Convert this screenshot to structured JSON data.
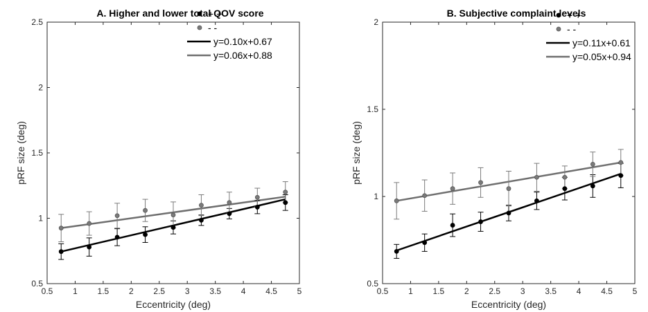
{
  "chart_data": [
    {
      "type": "scatter",
      "title": "A. Higher and lower total QOV score",
      "xlabel": "Eccentricity (deg)",
      "ylabel": "pRF size (deg)",
      "xlim": [
        0.5,
        5
      ],
      "ylim": [
        0.5,
        2.5
      ],
      "xticks": [
        "0.5",
        "1",
        "1.5",
        "2",
        "2.5",
        "3",
        "3.5",
        "4",
        "4.5",
        "5"
      ],
      "yticks": [
        "0.5",
        "1",
        "1.5",
        "2",
        "2.5"
      ],
      "legend_position": "top-right",
      "series": [
        {
          "name": "+ +",
          "color": "#000000",
          "x": [
            0.75,
            1.25,
            1.75,
            2.25,
            2.75,
            3.25,
            3.75,
            4.25,
            4.75
          ],
          "y": [
            0.745,
            0.78,
            0.855,
            0.875,
            0.93,
            0.985,
            1.035,
            1.085,
            1.12
          ],
          "err": [
            0.06,
            0.07,
            0.065,
            0.06,
            0.05,
            0.04,
            0.04,
            0.05,
            0.06
          ]
        },
        {
          "name": "- -",
          "color": "#7a7a7a",
          "x": [
            0.75,
            1.25,
            1.75,
            2.25,
            2.75,
            3.25,
            3.75,
            4.25,
            4.75
          ],
          "y": [
            0.925,
            0.96,
            1.02,
            1.06,
            1.025,
            1.1,
            1.12,
            1.16,
            1.2
          ],
          "err": [
            0.105,
            0.09,
            0.095,
            0.085,
            0.1,
            0.08,
            0.08,
            0.07,
            0.08
          ]
        }
      ],
      "fits": [
        {
          "label": "y=0.10x+0.67",
          "color": "#000000",
          "x": [
            0.75,
            4.75
          ],
          "y": [
            0.745,
            1.145
          ]
        },
        {
          "label": "y=0.06x+0.88",
          "color": "#6e6e6e",
          "x": [
            0.75,
            4.75
          ],
          "y": [
            0.925,
            1.165
          ]
        }
      ]
    },
    {
      "type": "scatter",
      "title": "B. Subjective complaint levels",
      "xlabel": "Eccentricity (deg)",
      "ylabel": "pRF size (deg)",
      "xlim": [
        0.5,
        5
      ],
      "ylim": [
        0.5,
        2
      ],
      "xticks": [
        "0.5",
        "1",
        "1.5",
        "2",
        "2.5",
        "3",
        "3.5",
        "4",
        "4.5",
        "5"
      ],
      "yticks": [
        "0.5",
        "1",
        "1.5",
        "2"
      ],
      "legend_position": "top-right",
      "series": [
        {
          "name": "+ +",
          "color": "#000000",
          "x": [
            0.75,
            1.25,
            1.75,
            2.25,
            2.75,
            3.25,
            3.75,
            4.25,
            4.75
          ],
          "y": [
            0.685,
            0.735,
            0.835,
            0.855,
            0.905,
            0.975,
            1.045,
            1.06,
            1.12
          ],
          "err": [
            0.04,
            0.05,
            0.065,
            0.055,
            0.045,
            0.05,
            0.065,
            0.065,
            0.07
          ]
        },
        {
          "name": "- -",
          "color": "#7a7a7a",
          "x": [
            0.75,
            1.25,
            1.75,
            2.25,
            2.75,
            3.25,
            3.75,
            4.25,
            4.75
          ],
          "y": [
            0.975,
            1.005,
            1.045,
            1.08,
            1.045,
            1.11,
            1.11,
            1.185,
            1.195
          ],
          "err": [
            0.105,
            0.09,
            0.09,
            0.085,
            0.1,
            0.08,
            0.065,
            0.07,
            0.075
          ]
        }
      ],
      "fits": [
        {
          "label": "y=0.11x+0.61",
          "color": "#000000",
          "x": [
            0.75,
            4.75
          ],
          "y": [
            0.69,
            1.13
          ]
        },
        {
          "label": "y=0.05x+0.94",
          "color": "#6e6e6e",
          "x": [
            0.75,
            4.75
          ],
          "y": [
            0.975,
            1.195
          ]
        }
      ]
    }
  ]
}
